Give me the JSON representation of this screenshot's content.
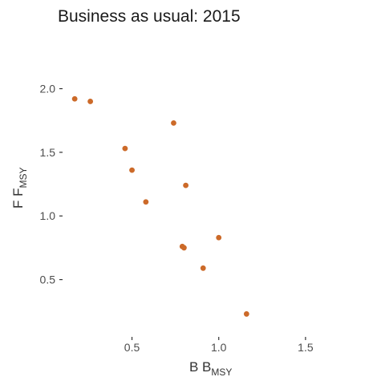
{
  "chart_data": {
    "type": "scatter",
    "title": "Business as usual: 2015",
    "xlabel": {
      "main": "B B",
      "sub": "MSY"
    },
    "ylabel": {
      "main": "F F",
      "sub": "MSY"
    },
    "xlim": [
      0.1,
      1.75
    ],
    "ylim": [
      0.05,
      2.35
    ],
    "xticks": [
      0.5,
      1.0,
      1.5
    ],
    "xtick_labels": [
      "0.5",
      "1.0",
      "1.5"
    ],
    "yticks": [
      0.5,
      1.0,
      1.5,
      2.0
    ],
    "ytick_labels": [
      "0.5",
      "1.0",
      "1.5",
      "2.0"
    ],
    "grid": false,
    "point_color": "#cc6a29",
    "points": [
      {
        "x": 0.17,
        "y": 1.92
      },
      {
        "x": 0.26,
        "y": 1.9
      },
      {
        "x": 0.74,
        "y": 1.73
      },
      {
        "x": 0.46,
        "y": 1.53
      },
      {
        "x": 0.5,
        "y": 1.36
      },
      {
        "x": 0.81,
        "y": 1.24
      },
      {
        "x": 0.58,
        "y": 1.11
      },
      {
        "x": 1.0,
        "y": 0.83
      },
      {
        "x": 0.79,
        "y": 0.76
      },
      {
        "x": 0.8,
        "y": 0.75
      },
      {
        "x": 0.91,
        "y": 0.59
      },
      {
        "x": 1.16,
        "y": 0.23
      }
    ]
  }
}
